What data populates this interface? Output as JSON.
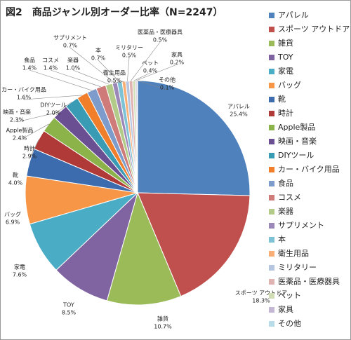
{
  "chart_data": {
    "type": "pie",
    "title": "図2　商品ジャンル別オーダー比率（N=2247）",
    "categories": [
      "アパレル",
      "スポーツ アウトドア",
      "雑貨",
      "TOY",
      "家電",
      "バッグ",
      "靴",
      "時計",
      "Apple製品",
      "映画・音楽",
      "DIYツール",
      "カー・バイク用品",
      "食品",
      "コスメ",
      "楽器",
      "サプリメント",
      "本",
      "衛生用品",
      "ミリタリー",
      "医薬品・医療器具",
      "ペット",
      "家具",
      "その他"
    ],
    "values": [
      25.4,
      18.3,
      10.7,
      8.5,
      7.6,
      6.9,
      4.0,
      2.9,
      2.4,
      2.3,
      2.0,
      1.6,
      1.4,
      1.4,
      1.0,
      0.7,
      0.7,
      0.5,
      0.5,
      0.5,
      0.4,
      0.2,
      0.1
    ],
    "value_labels": [
      "25.4%",
      "18.3%",
      "10.7%",
      "8.5%",
      "7.6%",
      "6.9%",
      "4.0%",
      "2.9%",
      "2.4%",
      "2.3%",
      "2.0%",
      "1.6%",
      "1.4%",
      "1.4%",
      "1.0%",
      "0.7%",
      "0.7%",
      "0.5%",
      "0.5%",
      "0.5%",
      "0.4%",
      "0.2%",
      "0.1%"
    ],
    "colors": [
      "#4F81BD",
      "#C0504D",
      "#9BBB59",
      "#8064A2",
      "#4BACC6",
      "#F79646",
      "#3C6BAE",
      "#B03A37",
      "#8CB24A",
      "#6B4F93",
      "#3A9BB5",
      "#F07E2A",
      "#7D9CCB",
      "#CF7B79",
      "#B3CB88",
      "#9C88B8",
      "#7EC2D6",
      "#F9AE76",
      "#B6C6E0",
      "#E0B3B2",
      "#D1DEB5",
      "#C3B7D3",
      "#B8DDE8"
    ],
    "legend": "right"
  }
}
